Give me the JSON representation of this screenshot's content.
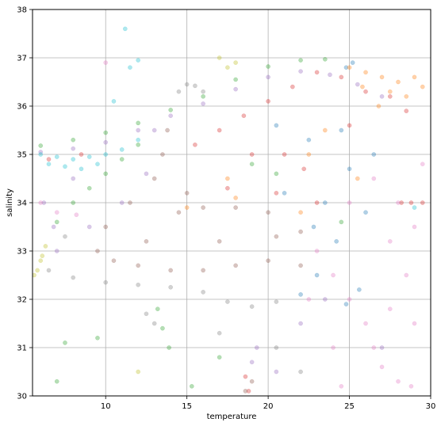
{
  "chart_data": {
    "type": "scatter",
    "title": "",
    "xlabel": "temperature",
    "ylabel": "salinity",
    "xlim": [
      5.5,
      30
    ],
    "ylim": [
      30,
      38
    ],
    "xticks": [
      10,
      15,
      20,
      25,
      30
    ],
    "yticks": [
      30,
      31,
      32,
      33,
      34,
      35,
      36,
      37,
      38
    ],
    "grid": true,
    "legend": "none",
    "marker_alpha": 0.35,
    "series": [
      {
        "color": "#1f77b4",
        "points": [
          [
            25.2,
            36.9
          ],
          [
            24.8,
            36.8
          ],
          [
            24.5,
            35.5
          ],
          [
            25.0,
            34.7
          ],
          [
            23.5,
            34.0
          ],
          [
            22.8,
            33.5
          ],
          [
            24.2,
            33.2
          ],
          [
            25.6,
            32.2
          ],
          [
            24.8,
            31.9
          ],
          [
            22.0,
            32.1
          ],
          [
            23.0,
            32.5
          ],
          [
            20.5,
            35.6
          ],
          [
            22.5,
            35.3
          ],
          [
            26.5,
            35.0
          ],
          [
            26.0,
            33.8
          ],
          [
            21.0,
            34.2
          ]
        ]
      },
      {
        "color": "#ff7f0e",
        "points": [
          [
            25.0,
            36.8
          ],
          [
            26.0,
            36.7
          ],
          [
            27.0,
            36.6
          ],
          [
            28.0,
            36.5
          ],
          [
            29.0,
            36.6
          ],
          [
            29.5,
            36.4
          ],
          [
            28.5,
            36.2
          ],
          [
            27.5,
            36.3
          ],
          [
            26.8,
            36.0
          ],
          [
            25.8,
            36.4
          ],
          [
            23.5,
            35.5
          ],
          [
            22.5,
            35.0
          ],
          [
            17.5,
            34.5
          ],
          [
            15.0,
            33.9
          ],
          [
            18.0,
            34.1
          ],
          [
            22.0,
            33.8
          ],
          [
            25.5,
            34.5
          ]
        ]
      },
      {
        "color": "#2ca02c",
        "points": [
          [
            6.0,
            35.18
          ],
          [
            8.0,
            35.3
          ],
          [
            10.0,
            35.45
          ],
          [
            12.0,
            35.65
          ],
          [
            14.0,
            35.92
          ],
          [
            16.0,
            36.2
          ],
          [
            18.0,
            36.55
          ],
          [
            20.0,
            36.82
          ],
          [
            22.0,
            36.95
          ],
          [
            23.5,
            36.97
          ],
          [
            7.0,
            33.6
          ],
          [
            8.0,
            34.0
          ],
          [
            9.0,
            34.3
          ],
          [
            10.0,
            34.6
          ],
          [
            11.0,
            34.9
          ],
          [
            12.0,
            35.2
          ],
          [
            13.5,
            31.4
          ],
          [
            13.9,
            31.0
          ],
          [
            13.2,
            31.8
          ],
          [
            19.0,
            34.8
          ],
          [
            20.5,
            34.6
          ],
          [
            24.5,
            33.6
          ],
          [
            7.0,
            30.3
          ],
          [
            7.5,
            31.1
          ],
          [
            9.5,
            31.2
          ],
          [
            15.3,
            30.2
          ],
          [
            17.0,
            30.8
          ]
        ]
      },
      {
        "color": "#d62728",
        "points": [
          [
            15.5,
            35.2
          ],
          [
            17.0,
            35.5
          ],
          [
            18.5,
            35.8
          ],
          [
            20.0,
            36.1
          ],
          [
            21.5,
            36.4
          ],
          [
            23.0,
            36.7
          ],
          [
            24.5,
            36.6
          ],
          [
            26.0,
            36.3
          ],
          [
            27.5,
            36.2
          ],
          [
            28.5,
            35.9
          ],
          [
            19.0,
            35.0
          ],
          [
            21.0,
            35.0
          ],
          [
            17.5,
            34.3
          ],
          [
            20.5,
            34.2
          ],
          [
            23.0,
            34.0
          ],
          [
            6.5,
            34.9
          ],
          [
            8.5,
            35.0
          ],
          [
            18.8,
            30.1
          ],
          [
            18.6,
            30.4
          ],
          [
            28.2,
            34.0
          ],
          [
            28.8,
            34.0
          ],
          [
            29.5,
            34.0
          ],
          [
            25.0,
            35.6
          ],
          [
            22.2,
            34.7
          ]
        ]
      },
      {
        "color": "#9467bd",
        "points": [
          [
            6.0,
            35.05
          ],
          [
            8.0,
            35.12
          ],
          [
            10.0,
            35.25
          ],
          [
            12.0,
            35.5
          ],
          [
            14.0,
            35.8
          ],
          [
            16.0,
            36.05
          ],
          [
            18.0,
            36.35
          ],
          [
            20.0,
            36.6
          ],
          [
            22.0,
            36.72
          ],
          [
            23.8,
            36.65
          ],
          [
            25.5,
            36.45
          ],
          [
            27.0,
            36.2
          ],
          [
            13.0,
            35.5
          ],
          [
            12.5,
            34.6
          ],
          [
            11.0,
            34.0
          ],
          [
            9.0,
            33.5
          ],
          [
            7.0,
            33.0
          ],
          [
            8.0,
            34.5
          ],
          [
            6.2,
            34.0
          ],
          [
            6.8,
            33.5
          ],
          [
            19.0,
            30.7
          ],
          [
            19.3,
            31.0
          ],
          [
            20.5,
            30.5
          ],
          [
            22.0,
            31.5
          ],
          [
            27.0,
            31.0
          ],
          [
            23.5,
            32.0
          ]
        ]
      },
      {
        "color": "#8c564b",
        "points": [
          [
            9.5,
            33.0
          ],
          [
            10.5,
            32.8
          ],
          [
            12.0,
            32.7
          ],
          [
            14.0,
            32.6
          ],
          [
            16.0,
            32.6
          ],
          [
            18.0,
            32.7
          ],
          [
            20.0,
            32.8
          ],
          [
            22.0,
            32.7
          ],
          [
            10.0,
            33.5
          ],
          [
            11.5,
            34.0
          ],
          [
            13.0,
            34.5
          ],
          [
            13.5,
            35.0
          ],
          [
            13.8,
            35.5
          ],
          [
            14.5,
            33.8
          ],
          [
            16.0,
            33.9
          ],
          [
            18.0,
            33.9
          ],
          [
            20.0,
            33.8
          ],
          [
            22.0,
            33.4
          ],
          [
            12.5,
            33.2
          ],
          [
            17.0,
            33.2
          ],
          [
            20.5,
            33.3
          ],
          [
            15.0,
            34.2
          ],
          [
            18.6,
            30.1
          ],
          [
            19.0,
            30.3
          ]
        ]
      },
      {
        "color": "#e377c2",
        "points": [
          [
            24.0,
            32.5
          ],
          [
            25.0,
            32.0
          ],
          [
            26.0,
            31.5
          ],
          [
            26.5,
            31.0
          ],
          [
            27.0,
            30.6
          ],
          [
            28.0,
            30.3
          ],
          [
            27.5,
            31.8
          ],
          [
            28.5,
            32.5
          ],
          [
            29.0,
            33.5
          ],
          [
            29.5,
            34.8
          ],
          [
            26.5,
            34.5
          ],
          [
            25.0,
            34.0
          ],
          [
            23.0,
            33.0
          ],
          [
            22.5,
            32.0
          ],
          [
            24.0,
            31.0
          ],
          [
            29.0,
            31.5
          ],
          [
            28.0,
            34.0
          ],
          [
            24.5,
            30.2
          ],
          [
            6.0,
            34.0
          ],
          [
            7.0,
            33.8
          ],
          [
            8.2,
            33.75
          ],
          [
            10.0,
            36.9
          ],
          [
            28.8,
            30.2
          ],
          [
            27.5,
            33.2
          ]
        ]
      },
      {
        "color": "#7f7f7f",
        "points": [
          [
            6.5,
            32.6
          ],
          [
            8.0,
            32.45
          ],
          [
            10.0,
            32.35
          ],
          [
            12.0,
            32.3
          ],
          [
            14.0,
            32.25
          ],
          [
            16.0,
            32.15
          ],
          [
            17.5,
            31.95
          ],
          [
            19.0,
            31.85
          ],
          [
            20.5,
            31.95
          ],
          [
            14.5,
            36.3
          ],
          [
            15.0,
            36.45
          ],
          [
            15.5,
            36.42
          ],
          [
            16.0,
            36.3
          ],
          [
            13.0,
            31.5
          ],
          [
            12.5,
            31.7
          ],
          [
            20.5,
            31.0
          ],
          [
            22.0,
            30.5
          ],
          [
            17.0,
            31.3
          ],
          [
            7.5,
            33.3
          ]
        ]
      },
      {
        "color": "#bcbd22",
        "points": [
          [
            5.6,
            32.5
          ],
          [
            6.0,
            32.8
          ],
          [
            6.3,
            33.1
          ],
          [
            5.8,
            32.6
          ],
          [
            6.1,
            32.9
          ],
          [
            17.5,
            36.8
          ],
          [
            18.0,
            36.9
          ],
          [
            12.0,
            30.5
          ],
          [
            17.0,
            37.0
          ]
        ]
      },
      {
        "color": "#17becf",
        "points": [
          [
            6.0,
            35.0
          ],
          [
            7.0,
            34.95
          ],
          [
            8.0,
            34.9
          ],
          [
            9.0,
            34.95
          ],
          [
            10.0,
            35.0
          ],
          [
            11.0,
            35.1
          ],
          [
            12.0,
            35.3
          ],
          [
            6.5,
            34.8
          ],
          [
            7.5,
            34.75
          ],
          [
            8.5,
            34.7
          ],
          [
            9.5,
            34.8
          ],
          [
            11.5,
            36.8
          ],
          [
            10.5,
            36.1
          ],
          [
            12.0,
            36.95
          ],
          [
            11.2,
            37.6
          ],
          [
            29.0,
            33.9
          ]
        ]
      }
    ]
  }
}
